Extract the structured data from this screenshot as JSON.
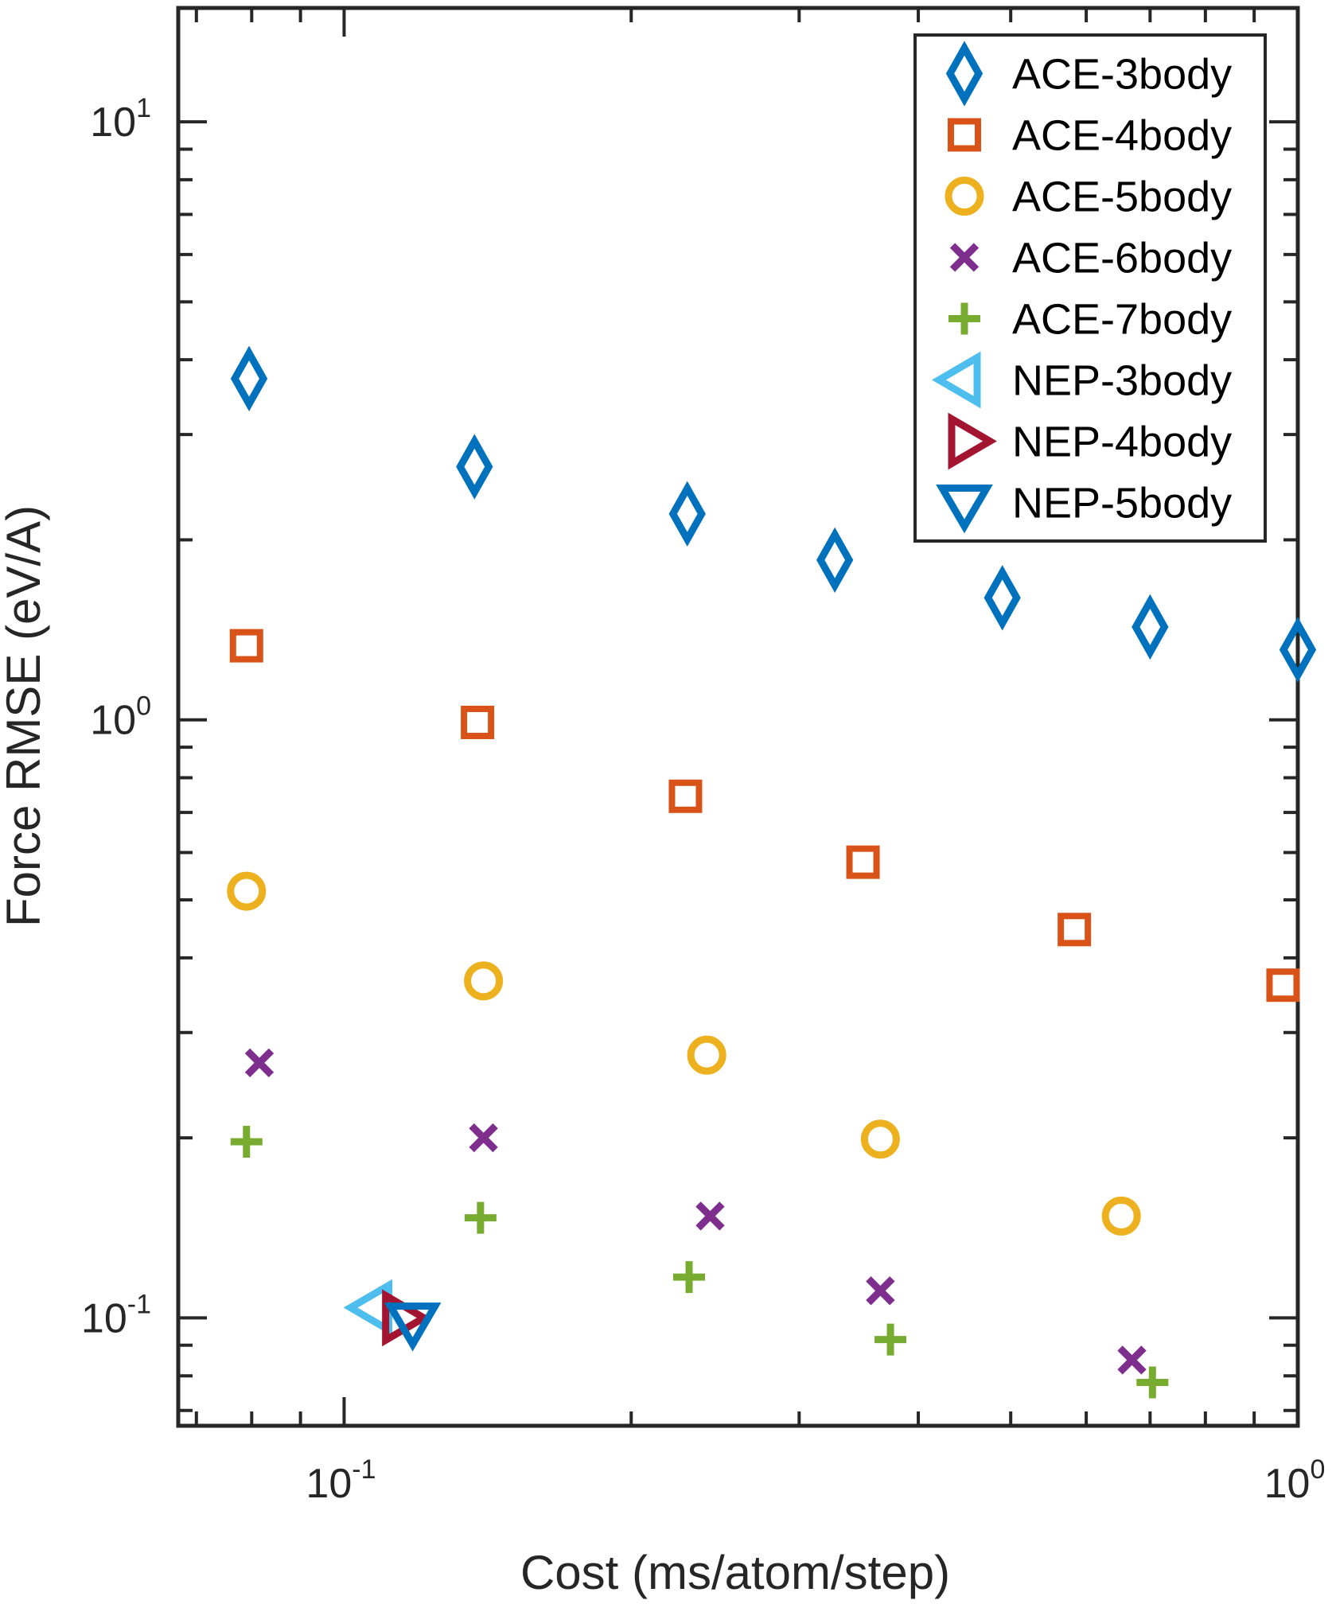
{
  "chart_data": {
    "type": "scatter",
    "xlabel": "Cost (ms/atom/step)",
    "ylabel": "Force RMSE (eV/A)",
    "xscale": "log",
    "yscale": "log",
    "xlim": [
      0.067,
      1.0
    ],
    "ylim": [
      0.066,
      15.5
    ],
    "xticks": [
      {
        "base": "10",
        "exp": "-1"
      },
      {
        "base": "10",
        "exp": "0"
      }
    ],
    "yticks": [
      {
        "base": "10",
        "exp": "-1"
      },
      {
        "base": "10",
        "exp": "0"
      },
      {
        "base": "10",
        "exp": "1"
      }
    ],
    "legend_position": "top-right",
    "grid": false,
    "series": [
      {
        "name": "ACE-3body",
        "marker": "diamond",
        "color": "#0072BD",
        "x": [
          0.0795,
          0.137,
          0.229,
          0.327,
          0.49,
          0.7,
          1.0
        ],
        "y": [
          3.72,
          2.65,
          2.21,
          1.85,
          1.6,
          1.43,
          1.31
        ]
      },
      {
        "name": "ACE-4body",
        "marker": "square",
        "color": "#D95319",
        "x": [
          0.079,
          0.138,
          0.228,
          0.35,
          0.583,
          0.965
        ],
        "y": [
          1.33,
          0.99,
          0.745,
          0.578,
          0.446,
          0.36
        ]
      },
      {
        "name": "ACE-5body",
        "marker": "circle",
        "color": "#EDB120",
        "x": [
          0.079,
          0.14,
          0.24,
          0.365,
          0.653
        ],
        "y": [
          0.517,
          0.366,
          0.275,
          0.199,
          0.148
        ]
      },
      {
        "name": "ACE-6body",
        "marker": "x",
        "color": "#7E2F8E",
        "x": [
          0.0815,
          0.14,
          0.242,
          0.365,
          0.67
        ],
        "y": [
          0.267,
          0.2,
          0.148,
          0.111,
          0.085
        ]
      },
      {
        "name": "ACE-7body",
        "marker": "plus",
        "color": "#77AC30",
        "x": [
          0.079,
          0.139,
          0.23,
          0.374,
          0.704
        ],
        "y": [
          0.197,
          0.147,
          0.117,
          0.092,
          0.078
        ]
      },
      {
        "name": "NEP-3body",
        "marker": "triangle-left",
        "color": "#4DBEEE",
        "x": [
          0.108
        ],
        "y": [
          0.104
        ]
      },
      {
        "name": "NEP-4body",
        "marker": "triangle-right",
        "color": "#A2142F",
        "x": [
          0.114
        ],
        "y": [
          0.1
        ]
      },
      {
        "name": "NEP-5body",
        "marker": "triangle-down",
        "color": "#0072BD",
        "x": [
          0.118
        ],
        "y": [
          0.099
        ]
      }
    ]
  }
}
